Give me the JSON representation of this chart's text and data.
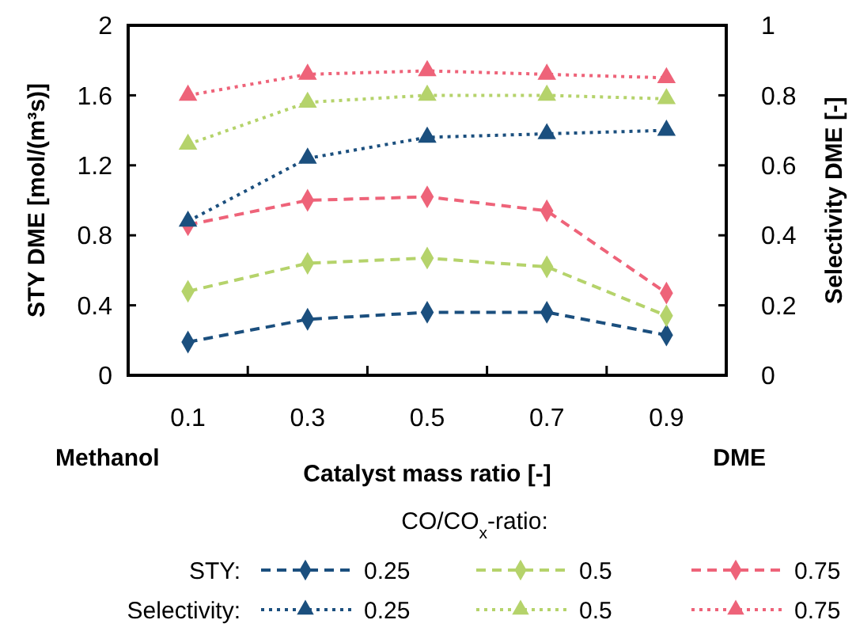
{
  "chart_data": {
    "type": "line",
    "categories": [
      "0.1",
      "0.3",
      "0.5",
      "0.7",
      "0.9"
    ],
    "xlabel": "Catalyst mass ratio [-]",
    "ylabel": "STY DME [mol/(m³s)]",
    "y2label": "Selectivity DME [-]",
    "ylim": [
      0,
      2
    ],
    "yticks": [
      0,
      0.4,
      0.8,
      1.2,
      1.6,
      2
    ],
    "y2lim": [
      0,
      1
    ],
    "y2ticks": [
      0,
      0.2,
      0.4,
      0.6,
      0.8,
      1
    ],
    "legend": "bottom",
    "legend_title": "CO/CO$_{x}$-ratio:",
    "series": [
      {
        "name": "0.25",
        "color": "#1b4f7e",
        "marker": "diamond",
        "line_style": "dashed",
        "values": [
          0.19,
          0.32,
          0.36,
          0.36,
          0.23
        ]
      },
      {
        "name": "0.5",
        "color": "#b5d36b",
        "marker": "diamond",
        "line_style": "dashed",
        "values": [
          0.48,
          0.64,
          0.67,
          0.62,
          0.34
        ]
      },
      {
        "name": "0.75",
        "color": "#ee6379",
        "marker": "diamond",
        "line_style": "dashed",
        "values": [
          0.86,
          1.0,
          1.02,
          0.94,
          0.47
        ]
      },
      {
        "name": "0.25",
        "color": "#1b4f7e",
        "marker": "triangle",
        "line_style": "dotted",
        "axis": "y2",
        "values": [
          0.44,
          0.62,
          0.68,
          0.69,
          0.7
        ]
      },
      {
        "name": "0.5",
        "color": "#b5d36b",
        "marker": "triangle",
        "line_style": "dotted",
        "axis": "y2",
        "values": [
          0.66,
          0.78,
          0.8,
          0.8,
          0.79
        ]
      },
      {
        "name": "0.75",
        "color": "#ee6379",
        "marker": "triangle",
        "line_style": "dotted",
        "axis": "y2",
        "values": [
          0.8,
          0.86,
          0.87,
          0.86,
          0.85
        ]
      }
    ],
    "annotations": [
      "Methanol",
      "DME",
      "STY:",
      "Selectivity:"
    ]
  }
}
